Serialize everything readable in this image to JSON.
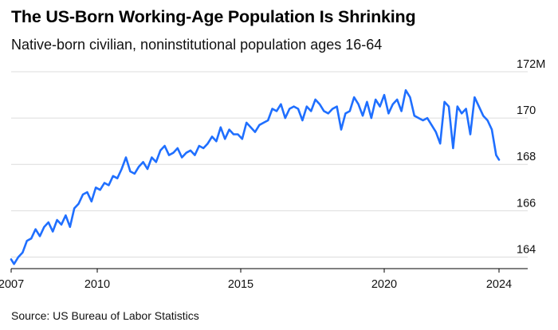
{
  "title": "The US-Born Working-Age Population Is Shrinking",
  "subtitle": "Native-born civilian, noninstitutional population ages 16-64",
  "source": "Source: US Bureau of Labor Statistics",
  "chart_data": {
    "type": "line",
    "title": "The US-Born Working-Age Population Is Shrinking",
    "subtitle": "Native-born civilian, noninstitutional population ages 16-64",
    "xlabel": "",
    "ylabel": "",
    "xlim": [
      2007,
      2025
    ],
    "ylim": [
      163.5,
      172
    ],
    "x_ticks": [
      2007,
      2010,
      2015,
      2020,
      2024
    ],
    "y_ticks": [
      164,
      166,
      168,
      170,
      172
    ],
    "y_tick_labels": [
      "164",
      "166",
      "168",
      "170",
      "172M"
    ],
    "grid": true,
    "legend": "none",
    "line_color": "#1f6fff",
    "series": [
      {
        "x": [
          2007.0,
          2007.1,
          2007.25,
          2007.4,
          2007.55,
          2007.7,
          2007.85,
          2008.0,
          2008.15,
          2008.3,
          2008.45,
          2008.6,
          2008.75,
          2008.9,
          2009.05,
          2009.2,
          2009.35,
          2009.5,
          2009.65,
          2009.8,
          2009.95,
          2010.1,
          2010.25,
          2010.4,
          2010.55,
          2010.7,
          2010.85,
          2011.0,
          2011.15,
          2011.3,
          2011.45,
          2011.6,
          2011.75,
          2011.9,
          2012.05,
          2012.2,
          2012.35,
          2012.5,
          2012.65,
          2012.8,
          2012.95,
          2013.1,
          2013.25,
          2013.4,
          2013.55,
          2013.7,
          2013.85,
          2014.0,
          2014.15,
          2014.3,
          2014.45,
          2014.6,
          2014.75,
          2014.9,
          2015.05,
          2015.2,
          2015.35,
          2015.5,
          2015.65,
          2015.8,
          2015.95,
          2016.1,
          2016.25,
          2016.4,
          2016.55,
          2016.7,
          2016.85,
          2017.0,
          2017.15,
          2017.3,
          2017.45,
          2017.6,
          2017.75,
          2017.9,
          2018.05,
          2018.2,
          2018.35,
          2018.5,
          2018.65,
          2018.8,
          2018.95,
          2019.1,
          2019.25,
          2019.4,
          2019.55,
          2019.7,
          2019.85,
          2020.0,
          2020.15,
          2020.3,
          2020.45,
          2020.6,
          2020.75,
          2020.9,
          2021.05,
          2021.2,
          2021.35,
          2021.5,
          2021.65,
          2021.8,
          2021.95,
          2022.1,
          2022.25,
          2022.4,
          2022.55,
          2022.7,
          2022.85,
          2023.0,
          2023.15,
          2023.3,
          2023.45,
          2023.6,
          2023.75,
          2023.9,
          2024.0
        ],
        "values": [
          163.9,
          163.7,
          164.0,
          164.2,
          164.7,
          164.8,
          165.2,
          164.9,
          165.3,
          165.5,
          165.1,
          165.6,
          165.4,
          165.8,
          165.3,
          166.1,
          166.3,
          166.7,
          166.8,
          166.4,
          167.0,
          166.9,
          167.2,
          167.1,
          167.5,
          167.4,
          167.8,
          168.3,
          167.7,
          167.6,
          167.9,
          168.1,
          167.8,
          168.3,
          168.1,
          168.6,
          168.8,
          168.4,
          168.5,
          168.7,
          168.3,
          168.5,
          168.6,
          168.4,
          168.8,
          168.7,
          168.9,
          169.2,
          169.0,
          169.6,
          169.1,
          169.5,
          169.3,
          169.3,
          169.1,
          169.8,
          169.6,
          169.4,
          169.7,
          169.8,
          169.9,
          170.4,
          170.3,
          170.6,
          170.0,
          170.4,
          170.5,
          170.4,
          169.9,
          170.5,
          170.3,
          170.8,
          170.6,
          170.3,
          170.2,
          170.4,
          170.5,
          169.5,
          170.2,
          170.3,
          170.9,
          170.6,
          170.1,
          170.7,
          170.0,
          170.8,
          170.5,
          171.0,
          170.2,
          170.6,
          170.8,
          170.3,
          171.2,
          170.9,
          170.1,
          170.0,
          169.9,
          170.0,
          169.7,
          169.4,
          168.9,
          170.7,
          170.5,
          168.7,
          170.5,
          170.2,
          170.4,
          169.3,
          170.9,
          170.5,
          170.1,
          169.9,
          169.5,
          168.4,
          168.2
        ]
      }
    ]
  }
}
